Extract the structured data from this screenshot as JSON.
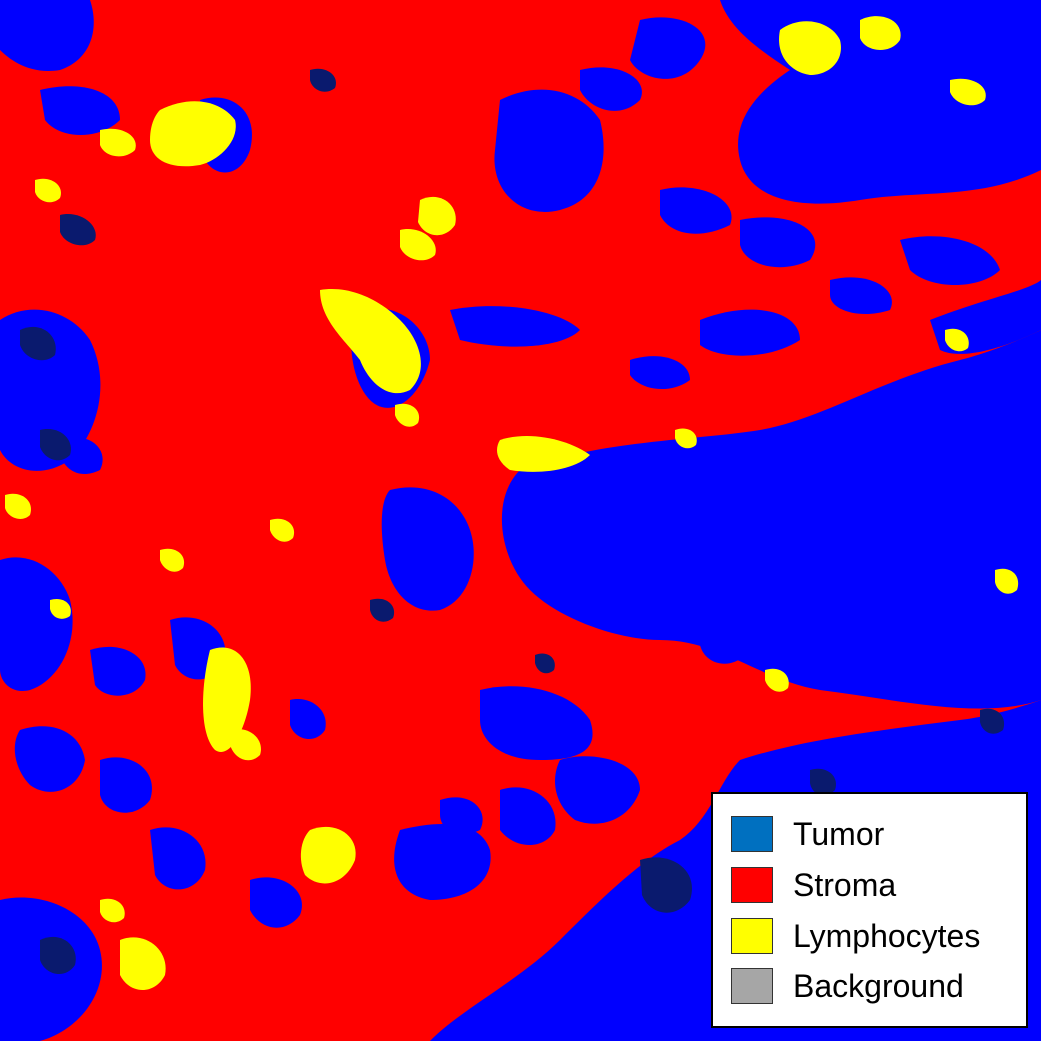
{
  "image": {
    "description_colors": {
      "stroma": "#ff0000",
      "tumor": "#0000ff",
      "tumor_dark": "#0a1a6e",
      "lymphocytes": "#ffff00",
      "background": "#a6a6a6"
    }
  },
  "legend": {
    "items": [
      {
        "label": "Tumor",
        "color": "#0070c0"
      },
      {
        "label": "Stroma",
        "color": "#ff0000"
      },
      {
        "label": "Lymphocytes",
        "color": "#ffff00"
      },
      {
        "label": "Background",
        "color": "#a6a6a6"
      }
    ]
  }
}
